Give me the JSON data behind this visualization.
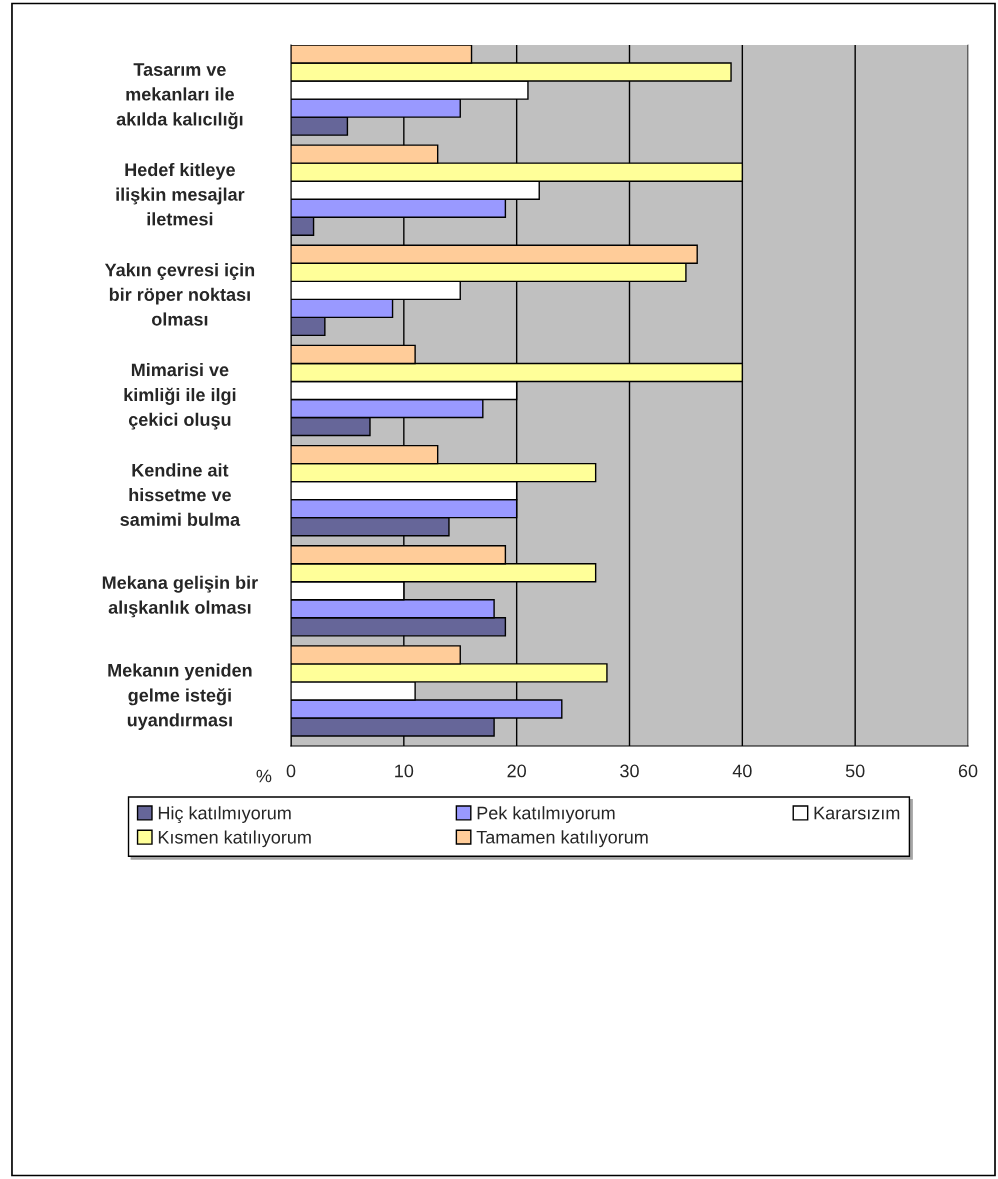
{
  "chart_data": {
    "type": "bar",
    "orientation": "horizontal",
    "categories": [
      "Tasarım ve\nmekanları ile\nakılda kalıcılığı",
      "Hedef kitleye\nilişkin mesajlar\niletmesi",
      "Yakın çevresi için\nbir röper noktası\nolması",
      "Mimarisi ve\nkimliği ile ilgi\nçekici oluşu",
      "Kendine ait\nhissetme ve\nsamimi bulma",
      "Mekana gelişin bir\nalışkanlık olması",
      "Mekanın yeniden\ngelme isteği\nuyandırması"
    ],
    "series": [
      {
        "name": "Hiç katılmıyorum",
        "color": "#666699",
        "values": [
          5,
          2,
          3,
          7,
          14,
          19,
          18
        ]
      },
      {
        "name": "Pek katılmıyorum",
        "color": "#9999ff",
        "values": [
          15,
          19,
          9,
          17,
          20,
          18,
          24
        ]
      },
      {
        "name": "Kararsızım",
        "color": "#ffffff",
        "values": [
          21,
          22,
          15,
          20,
          20,
          10,
          11
        ]
      },
      {
        "name": "Kısmen katılıyorum",
        "color": "#ffff99",
        "values": [
          39,
          40,
          35,
          40,
          27,
          27,
          28
        ]
      },
      {
        "name": "Tamamen katılıyorum",
        "color": "#ffcc99",
        "values": [
          16,
          13,
          36,
          11,
          13,
          19,
          15
        ]
      }
    ],
    "xlabel": "%",
    "xlim": [
      0,
      60
    ],
    "xticks": [
      0,
      10,
      20,
      30,
      40,
      50,
      60
    ],
    "grid": "x",
    "legend": "bottom"
  }
}
